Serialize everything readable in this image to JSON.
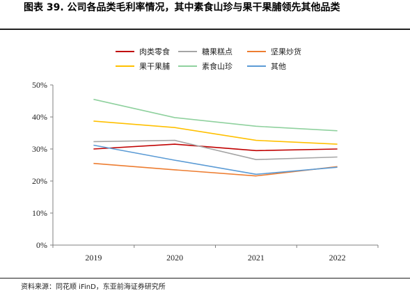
{
  "title": "图表 39. 公司各品类毛利率情况，其中素食山珍与果干果脯领先其他品类",
  "source": "资料来源：同花顺 iFinD，东亚前海证券研究所",
  "chart_data": {
    "type": "line",
    "categories": [
      "2019",
      "2020",
      "2021",
      "2022"
    ],
    "y_ticks": [
      "0%",
      "10%",
      "20%",
      "30%",
      "40%",
      "50%"
    ],
    "ylim": [
      0,
      50
    ],
    "grid": false,
    "legend_position": "top",
    "series": [
      {
        "name": "肉类零食",
        "color": "#c00000",
        "values": [
          30.0,
          31.5,
          29.5,
          30.0
        ]
      },
      {
        "name": "糖果糕点",
        "color": "#a5a5a5",
        "values": [
          32.3,
          32.7,
          26.7,
          27.5
        ]
      },
      {
        "name": "坚果炒货",
        "color": "#ed7d31",
        "values": [
          25.5,
          23.5,
          21.6,
          24.5
        ]
      },
      {
        "name": "果干果脯",
        "color": "#ffc000",
        "values": [
          38.7,
          36.7,
          32.7,
          31.5
        ]
      },
      {
        "name": "素食山珍",
        "color": "#8fd19e",
        "values": [
          45.5,
          39.8,
          37.1,
          35.7
        ]
      },
      {
        "name": "其他",
        "color": "#5b9bd5",
        "values": [
          31.2,
          26.5,
          22.1,
          24.3
        ]
      }
    ]
  }
}
